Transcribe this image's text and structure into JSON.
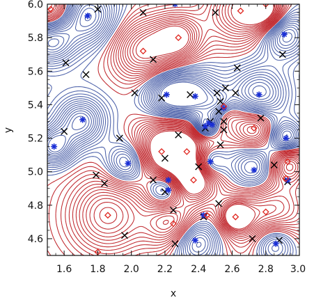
{
  "chart_data": {
    "type": "contour",
    "title": "",
    "xlabel": "x",
    "ylabel": "y",
    "xlim": [
      1.5,
      3.0
    ],
    "ylim": [
      4.5,
      6.0
    ],
    "xticks": [
      1.6,
      1.8,
      2.0,
      2.2,
      2.4,
      2.6,
      2.8,
      3.0
    ],
    "yticks": [
      4.6,
      4.8,
      5.0,
      5.2,
      5.4,
      5.6,
      5.8,
      6.0
    ],
    "xtick_labels": [
      "1.6",
      "1.8",
      "2.0",
      "2.2",
      "2.4",
      "2.6",
      "2.8",
      "3.0"
    ],
    "ytick_labels": [
      "4.6",
      "4.8",
      "5.0",
      "5.2",
      "5.4",
      "5.6",
      "5.8",
      "6.0"
    ],
    "grid": false,
    "colors": {
      "maxima_contours": "#c0272d",
      "minima_contours": "#4a5fa8",
      "saddle_marker": "#000000",
      "minimum_marker": "#1a2fd6",
      "maximum_marker": "#e0261f"
    },
    "maxima_peaks": [
      {
        "x": 2.07,
        "y": 5.72,
        "r": 0.13
      },
      {
        "x": 2.28,
        "y": 5.8,
        "r": 0.1
      },
      {
        "x": 2.65,
        "y": 5.96,
        "r": 0.14
      },
      {
        "x": 2.8,
        "y": 5.96,
        "r": 0.08
      },
      {
        "x": 2.18,
        "y": 5.12,
        "r": 0.13
      },
      {
        "x": 2.33,
        "y": 5.12,
        "r": 0.14
      },
      {
        "x": 1.86,
        "y": 4.74,
        "r": 0.17
      },
      {
        "x": 2.25,
        "y": 4.69,
        "r": 0.11
      },
      {
        "x": 2.37,
        "y": 4.95,
        "r": 0.09
      },
      {
        "x": 2.56,
        "y": 5.36,
        "r": 0.06
      },
      {
        "x": 2.73,
        "y": 5.26,
        "r": 0.09
      },
      {
        "x": 2.8,
        "y": 4.76,
        "r": 0.18
      },
      {
        "x": 2.93,
        "y": 5.05,
        "r": 0.08
      },
      {
        "x": 2.62,
        "y": 4.73,
        "r": 0.06
      },
      {
        "x": 1.52,
        "y": 5.97,
        "r": 0.09
      }
    ],
    "minima_wells": [
      {
        "x": 1.74,
        "y": 5.93,
        "r": 0.12
      },
      {
        "x": 1.52,
        "y": 5.78,
        "r": 0.1
      },
      {
        "x": 1.7,
        "y": 5.3,
        "r": 0.1
      },
      {
        "x": 1.54,
        "y": 5.15,
        "r": 0.08
      },
      {
        "x": 2.21,
        "y": 5.46,
        "r": 0.1
      },
      {
        "x": 2.38,
        "y": 5.45,
        "r": 0.11
      },
      {
        "x": 2.76,
        "y": 5.46,
        "r": 0.12
      },
      {
        "x": 2.91,
        "y": 5.82,
        "r": 0.1
      },
      {
        "x": 2.54,
        "y": 5.38,
        "r": 0.06
      },
      {
        "x": 2.44,
        "y": 5.27,
        "r": 0.05
      },
      {
        "x": 1.98,
        "y": 5.05,
        "r": 0.09
      },
      {
        "x": 2.73,
        "y": 5.01,
        "r": 0.11
      },
      {
        "x": 2.2,
        "y": 4.9,
        "r": 0.08
      },
      {
        "x": 2.38,
        "y": 4.59,
        "r": 0.1
      },
      {
        "x": 2.85,
        "y": 4.57,
        "r": 0.09
      },
      {
        "x": 2.92,
        "y": 5.2,
        "r": 0.07
      },
      {
        "x": 2.46,
        "y": 5.06,
        "r": 0.07
      }
    ],
    "saddle_points": [
      [
        1.8,
        5.97
      ],
      [
        2.07,
        5.95
      ],
      [
        2.5,
        5.95
      ],
      [
        2.9,
        5.7
      ],
      [
        1.61,
        5.65
      ],
      [
        1.73,
        5.58
      ],
      [
        2.13,
        5.67
      ],
      [
        2.63,
        5.62
      ],
      [
        2.02,
        5.47
      ],
      [
        2.18,
        5.44
      ],
      [
        2.35,
        5.46
      ],
      [
        2.51,
        5.47
      ],
      [
        2.53,
        5.42
      ],
      [
        2.56,
        5.5
      ],
      [
        2.62,
        5.47
      ],
      [
        1.6,
        5.24
      ],
      [
        1.93,
        5.2
      ],
      [
        2.44,
        5.26
      ],
      [
        2.47,
        5.3
      ],
      [
        2.52,
        5.36
      ],
      [
        2.55,
        5.25
      ],
      [
        2.77,
        5.32
      ],
      [
        2.53,
        5.16
      ],
      [
        2.28,
        5.22
      ],
      [
        2.2,
        5.08
      ],
      [
        2.4,
        5.03
      ],
      [
        2.85,
        5.04
      ],
      [
        1.79,
        4.98
      ],
      [
        1.84,
        4.93
      ],
      [
        2.13,
        4.95
      ],
      [
        2.2,
        4.88
      ],
      [
        2.25,
        4.77
      ],
      [
        2.52,
        4.81
      ],
      [
        2.43,
        4.73
      ],
      [
        1.96,
        4.62
      ],
      [
        2.26,
        4.57
      ],
      [
        2.72,
        4.6
      ],
      [
        2.93,
        4.94
      ],
      [
        2.88,
        4.59
      ],
      [
        2.55,
        5.3
      ]
    ],
    "minimum_markers": [
      [
        1.74,
        5.93
      ],
      [
        2.26,
        6.0
      ],
      [
        2.91,
        5.82
      ],
      [
        1.71,
        5.31
      ],
      [
        1.54,
        5.15
      ],
      [
        2.21,
        5.46
      ],
      [
        2.38,
        5.45
      ],
      [
        2.76,
        5.46
      ],
      [
        2.55,
        5.38
      ],
      [
        2.44,
        5.27
      ],
      [
        2.46,
        5.29
      ],
      [
        2.48,
        5.28
      ],
      [
        1.98,
        5.05
      ],
      [
        2.92,
        5.2
      ],
      [
        2.73,
        5.01
      ],
      [
        2.47,
        5.06
      ],
      [
        2.22,
        4.89
      ],
      [
        2.22,
        4.95
      ],
      [
        2.38,
        4.59
      ],
      [
        2.86,
        4.57
      ],
      [
        2.93,
        4.95
      ],
      [
        2.43,
        4.74
      ]
    ],
    "maximum_markers": [
      [
        2.07,
        5.72
      ],
      [
        2.28,
        5.8
      ],
      [
        2.65,
        5.96
      ],
      [
        2.8,
        6.0
      ],
      [
        2.18,
        5.12
      ],
      [
        2.33,
        5.12
      ],
      [
        1.86,
        4.74
      ],
      [
        2.25,
        4.69
      ],
      [
        2.37,
        4.95
      ],
      [
        2.55,
        5.39
      ],
      [
        2.73,
        5.26
      ],
      [
        2.8,
        4.76
      ],
      [
        2.93,
        5.06
      ],
      [
        2.62,
        4.73
      ],
      [
        1.52,
        5.97
      ],
      [
        1.8,
        4.52
      ],
      [
        2.45,
        4.74
      ],
      [
        2.92,
        4.96
      ]
    ]
  }
}
